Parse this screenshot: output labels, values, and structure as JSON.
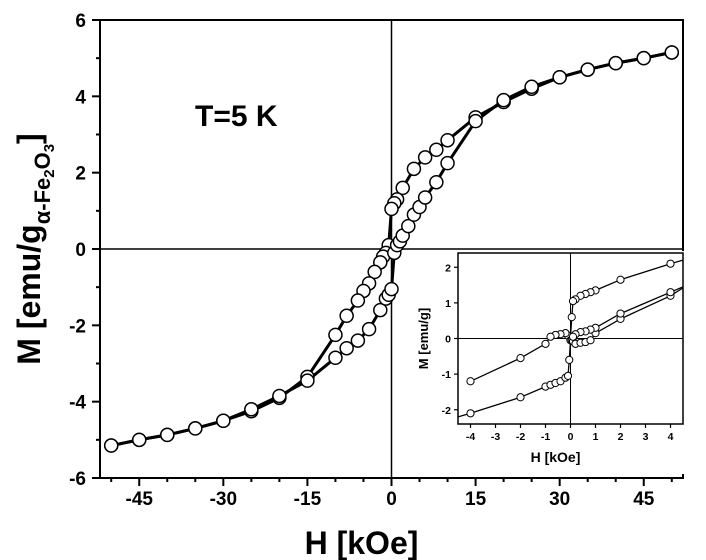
{
  "chart_data": [
    {
      "type": "scatter",
      "title": "",
      "annotation": "T=5 K",
      "xlabel": "H [kOe]",
      "ylabel": {
        "main": "M [emu/g",
        "sub_greek": "α",
        "sub_rest": "-Fe",
        "sub_2": "2",
        "sub_O": "O",
        "sub_3": "3",
        "close": "]"
      },
      "xlim": [
        -52,
        52
      ],
      "ylim": [
        -6,
        6
      ],
      "xticks": [
        -45,
        -30,
        -15,
        0,
        15,
        30,
        45
      ],
      "yticks": [
        -6,
        -4,
        -2,
        0,
        2,
        4,
        6
      ],
      "grid": false,
      "series": [
        {
          "x": [
            50,
            45,
            40,
            35,
            30,
            25,
            20,
            15,
            10,
            8,
            6,
            4,
            2,
            1,
            0.5,
            0,
            -0.5,
            -1,
            -1.5,
            -2,
            -3,
            -4,
            -5,
            -6,
            -8,
            -10,
            -15,
            -20,
            -25,
            -30,
            -35,
            -40,
            -45,
            -50
          ],
          "y": [
            5.15,
            5.0,
            4.87,
            4.7,
            4.5,
            4.2,
            3.85,
            3.45,
            2.85,
            2.6,
            2.4,
            2.1,
            1.6,
            1.3,
            1.2,
            1.05,
            0.1,
            -0.1,
            -0.2,
            -0.35,
            -0.6,
            -0.9,
            -1.1,
            -1.35,
            -1.75,
            -2.25,
            -3.35,
            -3.9,
            -4.25,
            -4.5,
            -4.7,
            -4.87,
            -5.0,
            -5.15
          ]
        },
        {
          "x": [
            -50,
            -45,
            -40,
            -35,
            -30,
            -25,
            -20,
            -15,
            -10,
            -8,
            -6,
            -4,
            -2,
            -1,
            -0.5,
            0,
            0.5,
            1,
            1.5,
            2,
            3,
            4,
            5,
            6,
            8,
            10,
            15,
            20,
            25,
            30,
            35,
            40,
            45,
            50
          ],
          "y": [
            -5.15,
            -5.0,
            -4.87,
            -4.7,
            -4.5,
            -4.2,
            -3.85,
            -3.45,
            -2.85,
            -2.6,
            -2.4,
            -2.1,
            -1.6,
            -1.3,
            -1.2,
            -1.05,
            -0.1,
            0.1,
            0.2,
            0.35,
            0.6,
            0.9,
            1.1,
            1.35,
            1.75,
            2.25,
            3.35,
            3.9,
            4.25,
            4.5,
            4.7,
            4.87,
            5.0,
            5.15
          ]
        }
      ]
    },
    {
      "type": "scatter",
      "title": "",
      "xlabel": "H [kOe]",
      "ylabel": "M [emu/g]",
      "xlim": [
        -4.5,
        4.5
      ],
      "ylim": [
        -2.4,
        2.4
      ],
      "xticks": [
        -4,
        -3,
        -2,
        -1,
        0,
        1,
        2,
        3,
        4
      ],
      "yticks": [
        -2,
        -1,
        0,
        1,
        2
      ],
      "grid": false,
      "series": [
        {
          "x": [
            4,
            2,
            1,
            0.8,
            0.6,
            0.4,
            0.2,
            0.1,
            0.05,
            0,
            -0.05,
            -0.1,
            -0.2,
            -0.4,
            -0.6,
            -0.8,
            -1,
            -2,
            -4
          ],
          "y": [
            2.1,
            1.65,
            1.35,
            1.3,
            1.25,
            1.2,
            1.1,
            1.05,
            0.6,
            0.05,
            0.05,
            0.08,
            0.15,
            0.12,
            0.1,
            0.05,
            -0.15,
            -0.55,
            -1.2
          ]
        },
        {
          "x": [
            -4,
            -2,
            -1,
            -0.8,
            -0.6,
            -0.4,
            -0.2,
            -0.1,
            -0.05,
            0,
            0.05,
            0.1,
            0.2,
            0.4,
            0.6,
            0.8,
            1,
            2,
            4
          ],
          "y": [
            -2.1,
            -1.65,
            -1.35,
            -1.3,
            -1.25,
            -1.2,
            -1.1,
            -1.05,
            -0.6,
            -0.05,
            -0.05,
            -0.08,
            -0.15,
            -0.12,
            -0.1,
            -0.05,
            0.15,
            0.55,
            1.2
          ]
        },
        {
          "x": [
            4,
            2,
            1,
            0.8,
            0.6,
            0.4,
            0.2,
            0.1
          ],
          "y": [
            1.3,
            0.7,
            0.3,
            0.25,
            0.2,
            0.18,
            0.12,
            0.05
          ]
        }
      ]
    }
  ]
}
